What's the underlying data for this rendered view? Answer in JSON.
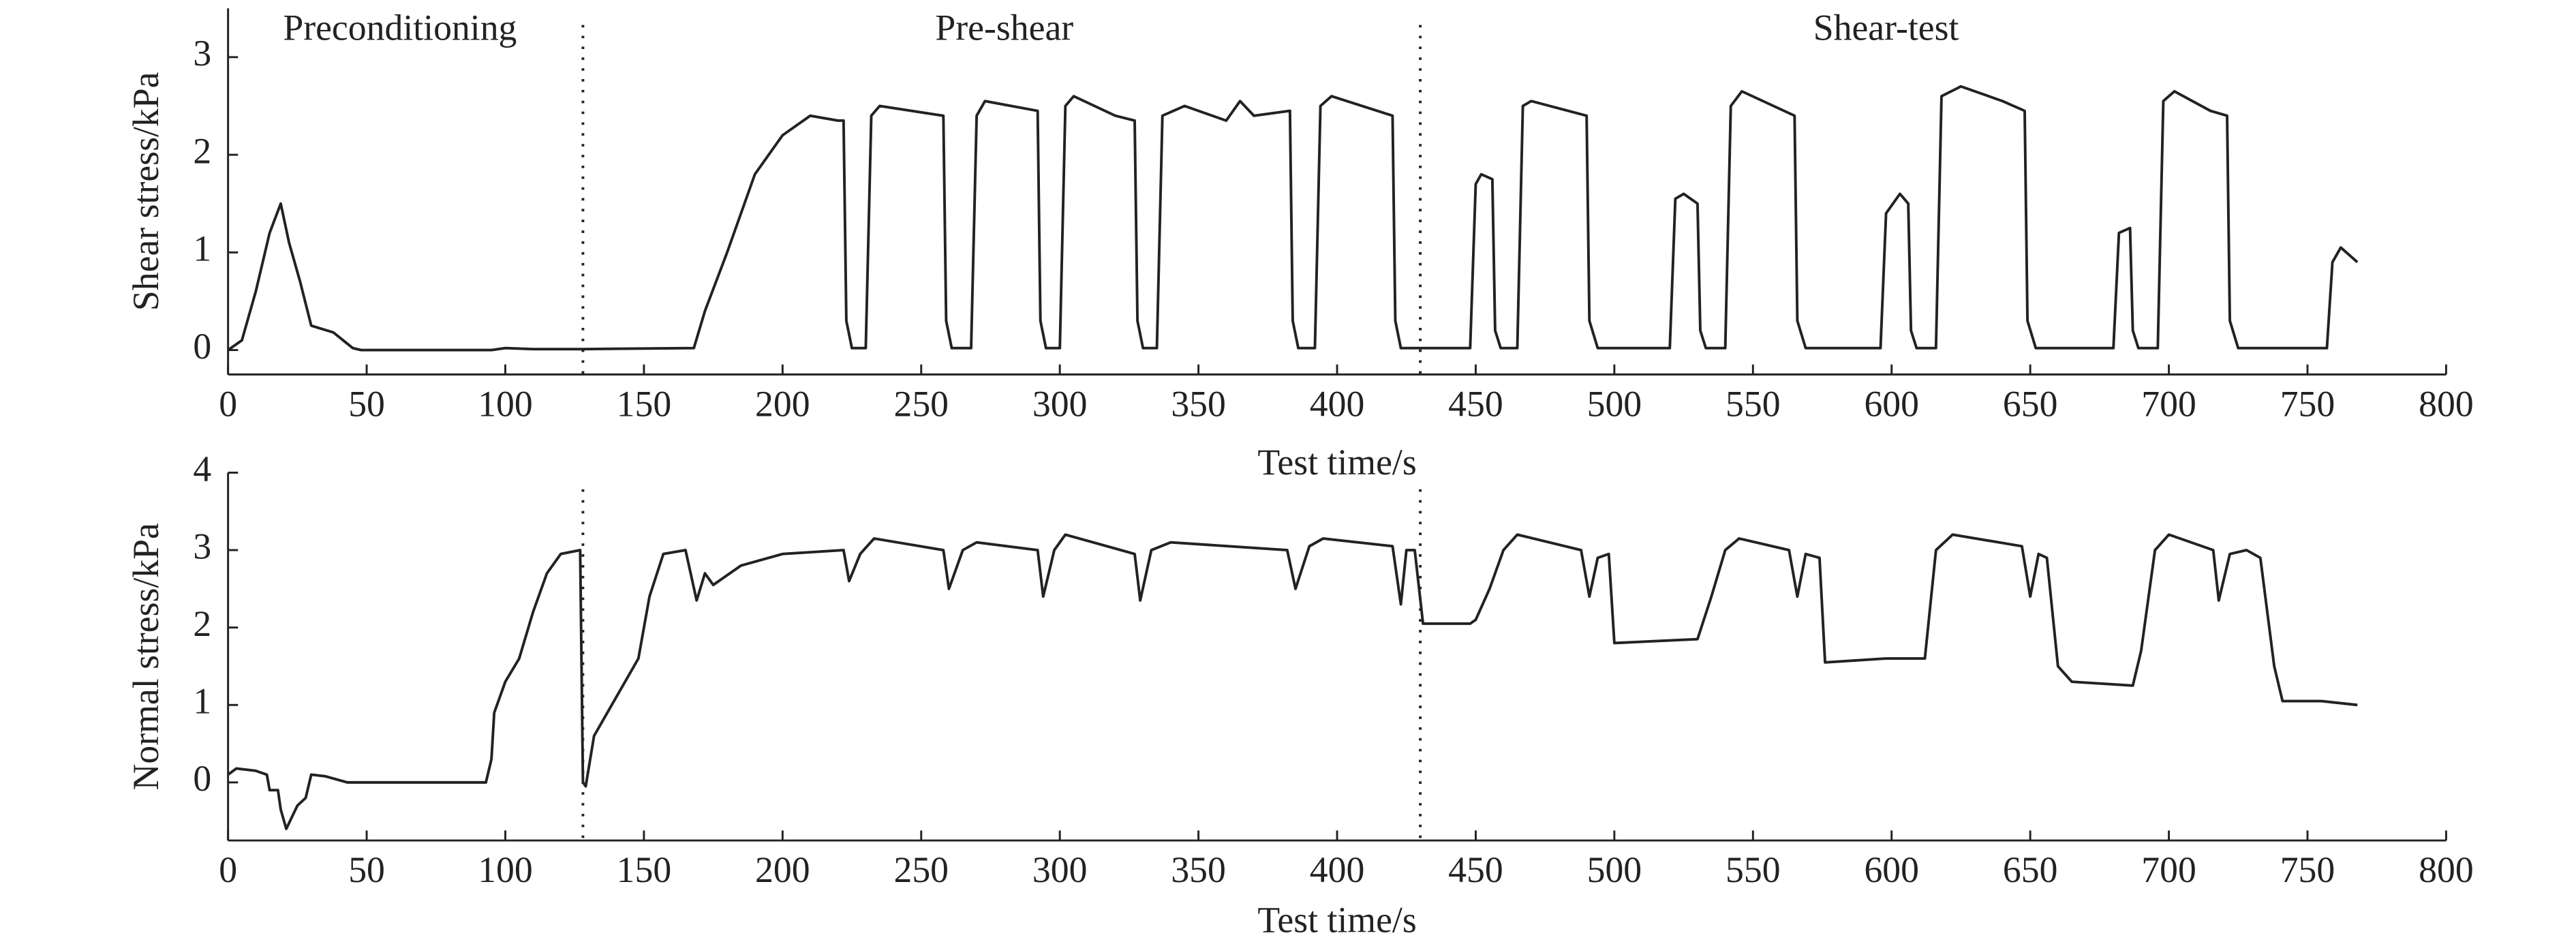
{
  "chart_data": [
    {
      "type": "line",
      "ylabel": "Shear stress/kPa",
      "xlabel": "Test time/s",
      "color": "#222222",
      "annotations": [
        {
          "text": "Preconditioning",
          "x": 62
        },
        {
          "text": "Pre-shear",
          "x": 280
        },
        {
          "text": "Shear-test",
          "x": 598
        }
      ],
      "vlines": [
        128,
        430
      ],
      "xlim": [
        0,
        800
      ],
      "xticks": [
        0,
        50,
        100,
        150,
        200,
        250,
        300,
        350,
        400,
        450,
        500,
        550,
        600,
        650,
        700,
        750,
        800
      ],
      "ylim": [
        -0.25,
        3.5
      ],
      "yticks": [
        0,
        1,
        2,
        3
      ],
      "x": [
        0,
        5,
        10,
        15,
        19,
        22,
        26,
        30,
        38,
        45,
        48,
        95,
        100,
        110,
        128,
        168,
        172,
        180,
        190,
        200,
        210,
        220,
        222,
        223,
        225,
        230,
        232,
        235,
        258,
        259,
        261,
        268,
        270,
        273,
        292,
        293,
        295,
        300,
        302,
        305,
        320,
        327,
        328,
        330,
        335,
        337,
        345,
        360,
        365,
        370,
        383,
        384,
        386,
        392,
        394,
        398,
        420,
        421,
        423,
        448,
        450,
        452,
        456,
        457,
        459,
        465,
        467,
        470,
        490,
        491,
        494,
        520,
        522,
        525,
        530,
        531,
        533,
        540,
        542,
        546,
        565,
        566,
        569,
        596,
        598,
        603,
        606,
        607,
        609,
        616,
        618,
        625,
        640,
        648,
        649,
        652,
        680,
        682,
        686,
        687,
        689,
        696,
        698,
        702,
        715,
        721,
        722,
        725,
        757,
        759,
        762,
        768
      ],
      "values": [
        0,
        0.1,
        0.6,
        1.2,
        1.5,
        1.1,
        0.7,
        0.25,
        0.18,
        0.02,
        0,
        0,
        0.02,
        0.01,
        0.01,
        0.02,
        0.4,
        1.0,
        1.8,
        2.2,
        2.4,
        2.35,
        2.35,
        0.3,
        0.02,
        0.02,
        2.4,
        2.5,
        2.4,
        0.3,
        0.02,
        0.02,
        2.4,
        2.55,
        2.45,
        0.3,
        0.02,
        0.02,
        2.5,
        2.6,
        2.4,
        2.35,
        0.3,
        0.02,
        0.02,
        2.4,
        2.5,
        2.35,
        2.55,
        2.4,
        2.45,
        0.3,
        0.02,
        0.02,
        2.5,
        2.6,
        2.4,
        0.3,
        0.02,
        0.02,
        1.7,
        1.8,
        1.75,
        0.2,
        0.02,
        0.02,
        2.5,
        2.55,
        2.4,
        0.3,
        0.02,
        0.02,
        1.55,
        1.6,
        1.5,
        0.2,
        0.02,
        0.02,
        2.5,
        2.65,
        2.4,
        0.3,
        0.02,
        0.02,
        1.4,
        1.6,
        1.5,
        0.2,
        0.02,
        0.02,
        2.6,
        2.7,
        2.55,
        2.45,
        0.3,
        0.02,
        0.02,
        1.2,
        1.25,
        0.2,
        0.02,
        0.02,
        2.55,
        2.65,
        2.45,
        2.4,
        0.3,
        0.02,
        0.02,
        0.9,
        1.05,
        0.9
      ]
    },
    {
      "type": "line",
      "ylabel": "Normal stress/kPa",
      "xlabel": "Test time/s",
      "color": "#222222",
      "vlines": [
        128,
        430
      ],
      "xlim": [
        0,
        800
      ],
      "xticks": [
        0,
        50,
        100,
        150,
        200,
        250,
        300,
        350,
        400,
        450,
        500,
        550,
        600,
        650,
        700,
        750,
        800
      ],
      "ylim": [
        -0.75,
        4
      ],
      "yticks": [
        0,
        1,
        2,
        3,
        4
      ],
      "x": [
        0,
        3,
        10,
        14,
        15,
        18,
        19,
        21,
        25,
        28,
        30,
        35,
        43,
        93,
        95,
        96,
        100,
        105,
        110,
        115,
        120,
        127,
        128,
        129,
        132,
        140,
        148,
        152,
        157,
        165,
        169,
        172,
        175,
        185,
        200,
        222,
        224,
        228,
        233,
        258,
        260,
        265,
        270,
        292,
        294,
        298,
        302,
        327,
        329,
        333,
        340,
        382,
        385,
        390,
        395,
        420,
        423,
        425,
        428,
        431,
        448,
        450,
        455,
        460,
        465,
        488,
        491,
        494,
        498,
        500,
        530,
        535,
        540,
        545,
        563,
        566,
        569,
        574,
        576,
        598,
        612,
        616,
        622,
        647,
        650,
        653,
        656,
        660,
        665,
        687,
        690,
        695,
        700,
        716,
        718,
        722,
        728,
        733,
        738,
        741,
        755,
        768
      ],
      "values": [
        0.1,
        0.18,
        0.15,
        0.1,
        -0.1,
        -0.1,
        -0.35,
        -0.6,
        -0.3,
        -0.2,
        0.1,
        0.08,
        0,
        0,
        0.3,
        0.9,
        1.3,
        1.6,
        2.2,
        2.7,
        2.95,
        3.0,
        0,
        -0.05,
        0.6,
        1.1,
        1.6,
        2.4,
        2.95,
        3.0,
        2.35,
        2.7,
        2.55,
        2.8,
        2.95,
        3.0,
        2.6,
        2.95,
        3.15,
        3.0,
        2.5,
        3.0,
        3.1,
        3.0,
        2.4,
        3.0,
        3.2,
        2.95,
        2.35,
        3.0,
        3.1,
        3.0,
        2.5,
        3.05,
        3.15,
        3.05,
        2.3,
        3.0,
        3.0,
        2.05,
        2.05,
        2.1,
        2.5,
        3.0,
        3.2,
        3.0,
        2.4,
        2.9,
        2.95,
        1.8,
        1.85,
        2.4,
        3.0,
        3.15,
        3.0,
        2.4,
        2.95,
        2.9,
        1.55,
        1.6,
        1.6,
        3.0,
        3.2,
        3.05,
        2.4,
        2.95,
        2.9,
        1.5,
        1.3,
        1.25,
        1.7,
        3.0,
        3.2,
        3.0,
        2.35,
        2.95,
        3.0,
        2.9,
        1.5,
        1.05,
        1.05,
        1.0
      ]
    }
  ]
}
